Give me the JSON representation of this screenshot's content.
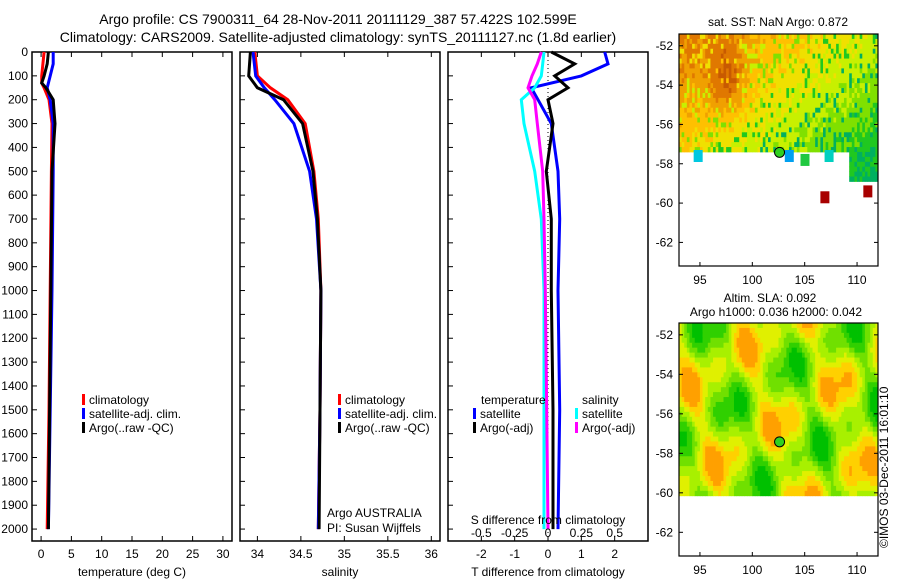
{
  "title_line1": "Argo profile: CS 7900311_64 28-Nov-2011 20111129_387 57.422S 102.599E",
  "title_line2": "Climatology: CARS2009. Satellite-adjusted climatology: synTS_20111127.nc (1.8d earlier)",
  "depth_ticks": [
    0,
    100,
    200,
    300,
    400,
    500,
    600,
    700,
    800,
    900,
    1000,
    1100,
    1200,
    1300,
    1400,
    1500,
    1600,
    1700,
    1800,
    1900,
    2000
  ],
  "colors": {
    "climatology": "#ff0000",
    "satellite": "#0000ff",
    "argo": "#000000",
    "sal_satellite": "#00ffff",
    "sal_argo": "#ff00ff"
  },
  "chart_data": [
    {
      "type": "line",
      "id": "temperature",
      "xlabel": "temperature (deg C)",
      "xlim": [
        -1.5,
        31.5
      ],
      "ylim": [
        2050,
        0
      ],
      "xticks": [
        0,
        5,
        10,
        15,
        20,
        25,
        30
      ],
      "depth": [
        0,
        50,
        100,
        130,
        150,
        200,
        300,
        500,
        1000,
        1500,
        2000
      ],
      "series": [
        {
          "name": "climatology",
          "values": [
            0.5,
            0.3,
            0.1,
            0.1,
            0.5,
            1.3,
            1.8,
            1.7,
            1.5,
            1.3,
            1.0
          ]
        },
        {
          "name": "satellite-adj. clim.",
          "values": [
            2.0,
            2.0,
            1.5,
            1.2,
            1.0,
            1.5,
            2.0,
            2.0,
            1.8,
            1.5,
            1.2
          ]
        },
        {
          "name": "Argo(..raw -QC)",
          "values": [
            1.2,
            1.0,
            0.5,
            0.1,
            0.8,
            2.0,
            2.3,
            1.8,
            1.6,
            1.4,
            1.2
          ]
        }
      ],
      "legend": [
        "climatology",
        "satellite-adj. clim.",
        "Argo(..raw -QC)"
      ]
    },
    {
      "type": "line",
      "id": "salinity",
      "xlabel": "salinity",
      "xlim": [
        33.8,
        36.1
      ],
      "ylim": [
        2050,
        0
      ],
      "xticks": [
        34,
        34.5,
        35,
        35.5,
        36
      ],
      "depth": [
        0,
        100,
        150,
        200,
        300,
        500,
        700,
        1000,
        1500,
        2000
      ],
      "series": [
        {
          "name": "climatology",
          "values": [
            33.97,
            34.0,
            34.15,
            34.35,
            34.55,
            34.65,
            34.7,
            34.73,
            34.72,
            34.7
          ]
        },
        {
          "name": "satellite-adj. clim.",
          "values": [
            33.95,
            33.98,
            34.08,
            34.2,
            34.42,
            34.6,
            34.68,
            34.73,
            34.72,
            34.7
          ]
        },
        {
          "name": "Argo(..raw -QC)",
          "values": [
            33.92,
            33.9,
            34.0,
            34.3,
            34.52,
            34.64,
            34.69,
            34.73,
            34.72,
            34.71
          ]
        }
      ],
      "legend": [
        "climatology",
        "satellite-adj. clim.",
        "Argo(..raw -QC)"
      ],
      "annotation1": "Argo AUSTRALIA",
      "annotation2": "PI: Susan Wijffels"
    },
    {
      "type": "line",
      "id": "difference",
      "xlabel": "T difference from climatology",
      "xlabel2": "S difference from climatology",
      "xlim": [
        -3.0,
        3.0
      ],
      "xticks": [
        -2,
        -1,
        0,
        1,
        2
      ],
      "s_xticks": [
        "-0.5",
        "-0.25",
        "0",
        "0.25",
        "0.5"
      ],
      "s_xtick_values": [
        -0.5,
        -0.25,
        0,
        0.25,
        0.5
      ],
      "ylim": [
        2050,
        0
      ],
      "depth": [
        0,
        50,
        100,
        150,
        200,
        300,
        500,
        700,
        1000,
        1500,
        2000
      ],
      "series": [
        {
          "name": "temperature satellite",
          "units": "degC",
          "values": [
            1.7,
            1.8,
            1.0,
            -0.5,
            -0.3,
            0.1,
            0.3,
            0.35,
            0.3,
            0.35,
            0.3
          ]
        },
        {
          "name": "temperature Argo(-adj)",
          "units": "degC",
          "values": [
            0.1,
            0.8,
            0.2,
            0.6,
            0.0,
            0.15,
            -0.05,
            0.1,
            0.1,
            0.15,
            0.15
          ]
        },
        {
          "name": "salinity satellite",
          "units": "psu",
          "values": [
            -0.03,
            -0.04,
            -0.05,
            -0.1,
            -0.2,
            -0.18,
            -0.1,
            -0.05,
            -0.03,
            -0.03,
            -0.03
          ]
        },
        {
          "name": "salinity Argo(-adj)",
          "units": "psu",
          "values": [
            -0.05,
            -0.08,
            -0.12,
            -0.15,
            -0.1,
            -0.08,
            -0.04,
            -0.03,
            -0.02,
            -0.01,
            0.0
          ]
        }
      ],
      "legend_t_title": "temperature",
      "legend_s_title": "salinity",
      "legend_t": [
        "satellite",
        "Argo(-adj)"
      ],
      "legend_s": [
        "satellite",
        "Argo(-adj)"
      ]
    },
    {
      "type": "heatmap",
      "id": "sst_map",
      "title": "sat. SST: NaN Argo: 0.872",
      "xlim": [
        93,
        112
      ],
      "ylim": [
        -63.2,
        -51.4
      ],
      "xticks": [
        95,
        100,
        105,
        110
      ],
      "yticks": [
        -52,
        -54,
        -56,
        -58,
        -60,
        -62
      ],
      "argo_position": {
        "lon": 102.6,
        "lat": -57.42
      }
    },
    {
      "type": "heatmap",
      "id": "sla_map",
      "title1": "Altim. SLA: 0.092",
      "title2": "Argo h1000: 0.036 h2000: 0.042",
      "xlim": [
        93,
        112
      ],
      "ylim": [
        -63.2,
        -51.4
      ],
      "xticks": [
        95,
        100,
        105,
        110
      ],
      "yticks": [
        -52,
        -54,
        -56,
        -58,
        -60,
        -62
      ],
      "argo_position": {
        "lon": 102.6,
        "lat": -57.42
      }
    }
  ],
  "credit": "©IMOS 03-Dec-2011 16:01:10"
}
